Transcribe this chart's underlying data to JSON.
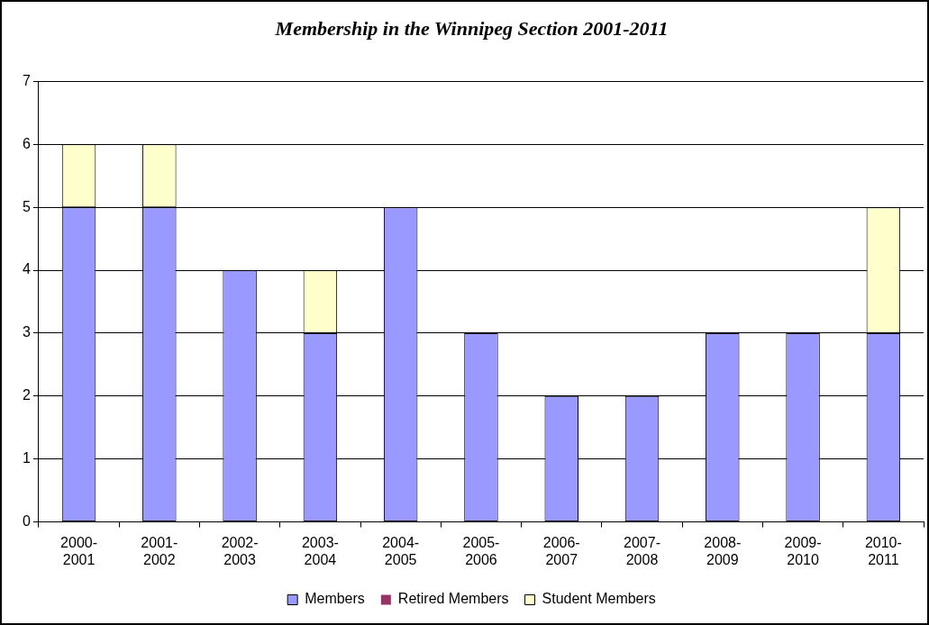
{
  "chart_data": {
    "type": "bar",
    "title": "Membership in the Winnipeg Section 2001-2011",
    "stacked": true,
    "categories": [
      "2000-2001",
      "2001-2002",
      "2002-2003",
      "2003-2004",
      "2004-2005",
      "2005-2006",
      "2006-2007",
      "2007-2008",
      "2008-2009",
      "2009-2010",
      "2010-2011"
    ],
    "series": [
      {
        "name": "Members",
        "color": "#9999ff",
        "values": [
          5,
          5,
          4,
          3,
          5,
          3,
          2,
          2,
          3,
          3,
          3
        ]
      },
      {
        "name": "Retired Members",
        "color": "#993366",
        "values": [
          0,
          0,
          0,
          0,
          0,
          0,
          0,
          0,
          0,
          0,
          0
        ]
      },
      {
        "name": "Student Members",
        "color": "#ffffcc",
        "values": [
          1,
          1,
          0,
          1,
          0,
          0,
          0,
          0,
          0,
          0,
          2
        ]
      }
    ],
    "ylim": [
      0,
      7
    ],
    "yticks": [
      0,
      1,
      2,
      3,
      4,
      5,
      6,
      7
    ],
    "grid": "y",
    "legend": "bottom"
  }
}
